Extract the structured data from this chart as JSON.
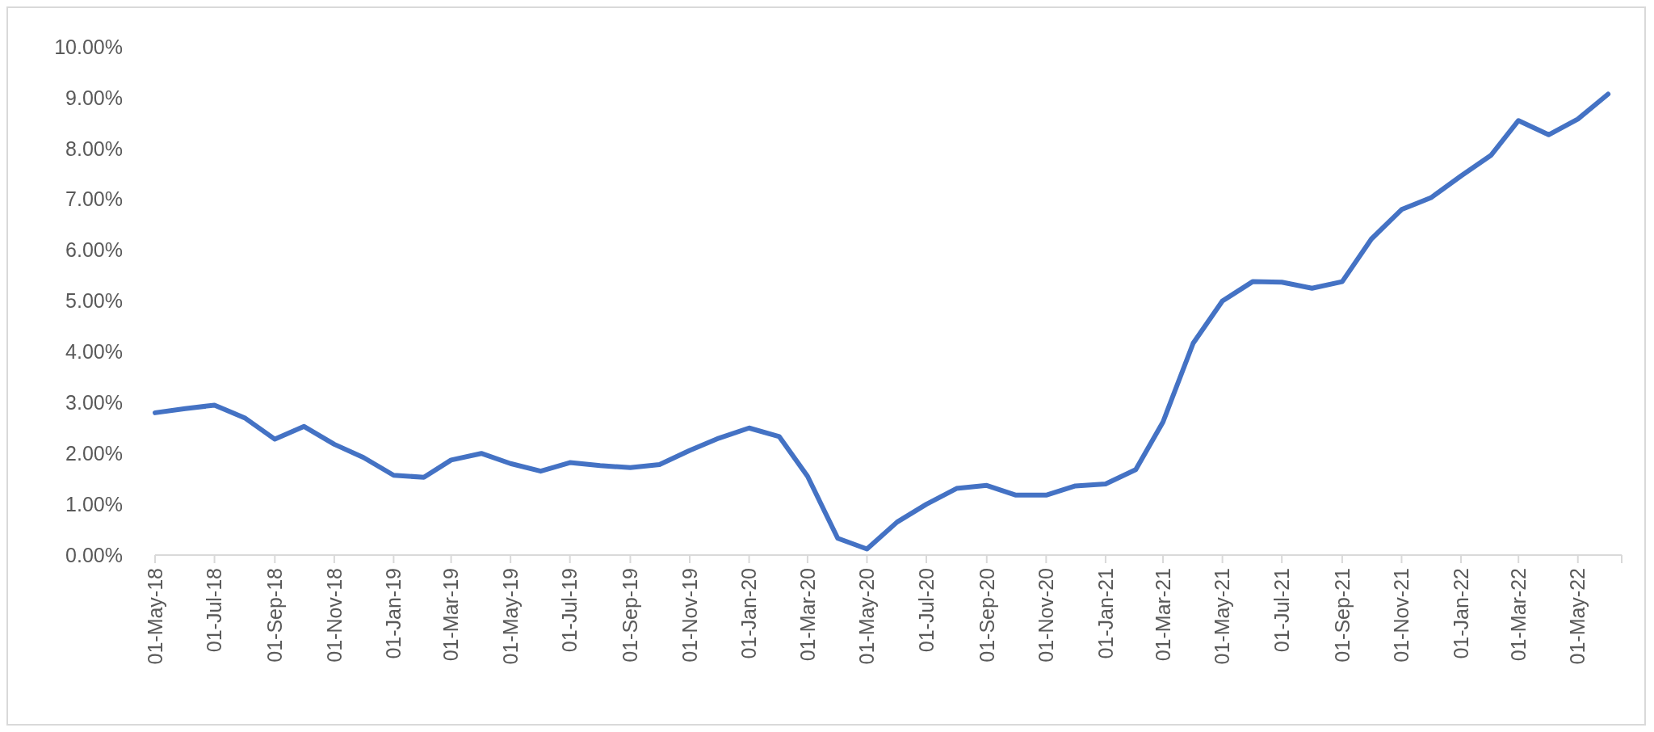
{
  "chart_data": {
    "type": "line",
    "x": [
      "2018-05-01",
      "2018-06-01",
      "2018-07-01",
      "2018-08-01",
      "2018-09-01",
      "2018-10-01",
      "2018-11-01",
      "2018-12-01",
      "2019-01-01",
      "2019-02-01",
      "2019-03-01",
      "2019-04-01",
      "2019-05-01",
      "2019-06-01",
      "2019-07-01",
      "2019-08-01",
      "2019-09-01",
      "2019-10-01",
      "2019-11-01",
      "2019-12-01",
      "2020-01-01",
      "2020-02-01",
      "2020-03-01",
      "2020-04-01",
      "2020-05-01",
      "2020-06-01",
      "2020-07-01",
      "2020-08-01",
      "2020-09-01",
      "2020-10-01",
      "2020-11-01",
      "2020-12-01",
      "2021-01-01",
      "2021-02-01",
      "2021-03-01",
      "2021-04-01",
      "2021-05-01",
      "2021-06-01",
      "2021-07-01",
      "2021-08-01",
      "2021-09-01",
      "2021-10-01",
      "2021-11-01",
      "2021-12-01",
      "2022-01-01",
      "2022-02-01",
      "2022-03-01",
      "2022-04-01",
      "2022-05-01",
      "2022-06-01"
    ],
    "series": [
      {
        "color": "#4472c4",
        "values": [
          2.8,
          2.88,
          2.95,
          2.7,
          2.28,
          2.53,
          2.18,
          1.92,
          1.57,
          1.53,
          1.87,
          2.0,
          1.8,
          1.65,
          1.82,
          1.76,
          1.72,
          1.78,
          2.06,
          2.3,
          2.5,
          2.33,
          1.55,
          0.33,
          0.12,
          0.65,
          1.0,
          1.31,
          1.37,
          1.18,
          1.18,
          1.36,
          1.4,
          1.68,
          2.62,
          4.17,
          5.0,
          5.38,
          5.37,
          5.25,
          5.38,
          6.22,
          6.8,
          7.03,
          7.46,
          7.87,
          8.55,
          8.27,
          8.58,
          9.07
        ]
      }
    ],
    "xlim": [
      "2018-05-01",
      "2022-06-15"
    ],
    "xticks": [
      {
        "value": "2018-05-01",
        "label": "01-May-18"
      },
      {
        "value": "2018-07-01",
        "label": "01-Jul-18"
      },
      {
        "value": "2018-09-01",
        "label": "01-Sep-18"
      },
      {
        "value": "2018-11-01",
        "label": "01-Nov-18"
      },
      {
        "value": "2019-01-01",
        "label": "01-Jan-19"
      },
      {
        "value": "2019-03-01",
        "label": "01-Mar-19"
      },
      {
        "value": "2019-05-01",
        "label": "01-May-19"
      },
      {
        "value": "2019-07-01",
        "label": "01-Jul-19"
      },
      {
        "value": "2019-09-01",
        "label": "01-Sep-19"
      },
      {
        "value": "2019-11-01",
        "label": "01-Nov-19"
      },
      {
        "value": "2020-01-01",
        "label": "01-Jan-20"
      },
      {
        "value": "2020-03-01",
        "label": "01-Mar-20"
      },
      {
        "value": "2020-05-01",
        "label": "01-May-20"
      },
      {
        "value": "2020-07-01",
        "label": "01-Jul-20"
      },
      {
        "value": "2020-09-01",
        "label": "01-Sep-20"
      },
      {
        "value": "2020-11-01",
        "label": "01-Nov-20"
      },
      {
        "value": "2021-01-01",
        "label": "01-Jan-21"
      },
      {
        "value": "2021-03-01",
        "label": "01-Mar-21"
      },
      {
        "value": "2021-05-01",
        "label": "01-May-21"
      },
      {
        "value": "2021-07-01",
        "label": "01-Jul-21"
      },
      {
        "value": "2021-09-01",
        "label": "01-Sep-21"
      },
      {
        "value": "2021-11-01",
        "label": "01-Nov-21"
      },
      {
        "value": "2022-01-01",
        "label": "01-Jan-22"
      },
      {
        "value": "2022-03-01",
        "label": "01-Mar-22"
      },
      {
        "value": "2022-05-01",
        "label": "01-May-22"
      }
    ],
    "ylim": [
      0,
      10
    ],
    "yticks": [
      {
        "value": 0,
        "label": "0.00%"
      },
      {
        "value": 1,
        "label": "1.00%"
      },
      {
        "value": 2,
        "label": "2.00%"
      },
      {
        "value": 3,
        "label": "3.00%"
      },
      {
        "value": 4,
        "label": "4.00%"
      },
      {
        "value": 5,
        "label": "5.00%"
      },
      {
        "value": 6,
        "label": "6.00%"
      },
      {
        "value": 7,
        "label": "7.00%"
      },
      {
        "value": 8,
        "label": "8.00%"
      },
      {
        "value": 9,
        "label": "9.00%"
      },
      {
        "value": 10,
        "label": "10.00%"
      }
    ],
    "marker": "none",
    "line_style": "solid"
  }
}
